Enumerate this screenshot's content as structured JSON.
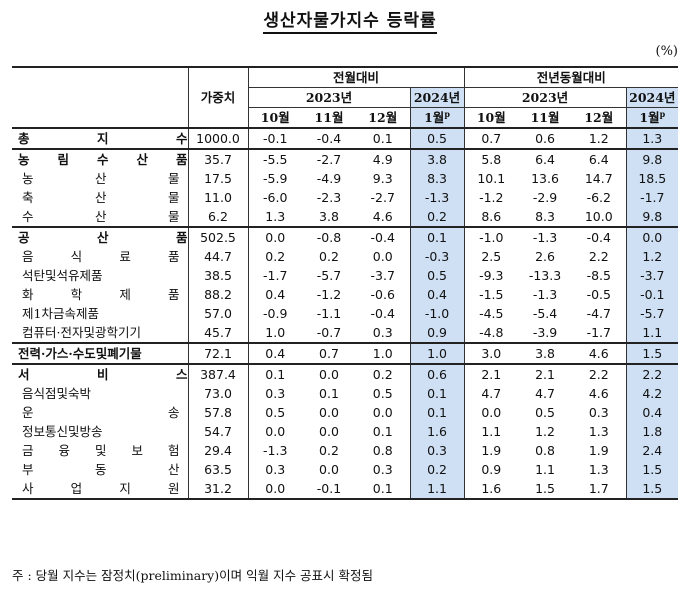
{
  "title": "생산자물가지수 등락률",
  "unit": "(%)",
  "header": {
    "weight": "가중치",
    "mom_group": "전월대비",
    "yoy_group": "전년동월대비",
    "year_2023": "2023년",
    "year_2024": "2024년",
    "months": [
      "10월",
      "11월",
      "12월",
      "1월"
    ],
    "prelim_mark": "p"
  },
  "rows": [
    {
      "label": "총 지 수",
      "bold": true,
      "weight": "1000.0",
      "mom": [
        "-0.1",
        "-0.4",
        "0.1",
        "0.5"
      ],
      "yoy": [
        "0.7",
        "0.6",
        "1.2",
        "1.3"
      ]
    },
    {
      "label": "농 림 수 산 품",
      "bold": true,
      "weight": "35.7",
      "mom": [
        "-5.5",
        "-2.7",
        "4.9",
        "3.8"
      ],
      "yoy": [
        "5.8",
        "6.4",
        "6.4",
        "9.8"
      ]
    },
    {
      "label": "농 산 물",
      "bold": false,
      "weight": "17.5",
      "mom": [
        "-5.9",
        "-4.9",
        "9.3",
        "8.3"
      ],
      "yoy": [
        "10.1",
        "13.6",
        "14.7",
        "18.5"
      ]
    },
    {
      "label": "축 산 물",
      "bold": false,
      "weight": "11.0",
      "mom": [
        "-6.0",
        "-2.3",
        "-2.7",
        "-1.3"
      ],
      "yoy": [
        "-1.2",
        "-2.9",
        "-6.2",
        "-1.7"
      ]
    },
    {
      "label": "수 산 물",
      "bold": false,
      "weight": "6.2",
      "mom": [
        "1.3",
        "3.8",
        "4.6",
        "0.2"
      ],
      "yoy": [
        "8.6",
        "8.3",
        "10.0",
        "9.8"
      ]
    },
    {
      "label": "공 산 품",
      "bold": true,
      "weight": "502.5",
      "mom": [
        "0.0",
        "-0.8",
        "-0.4",
        "0.1"
      ],
      "yoy": [
        "-1.0",
        "-1.3",
        "-0.4",
        "0.0"
      ]
    },
    {
      "label": "음 식 료 품",
      "bold": false,
      "weight": "44.7",
      "mom": [
        "0.2",
        "0.2",
        "0.0",
        "-0.3"
      ],
      "yoy": [
        "2.5",
        "2.6",
        "2.2",
        "1.2"
      ]
    },
    {
      "label": "석탄및석유제품",
      "bold": false,
      "weight": "38.5",
      "mom": [
        "-1.7",
        "-5.7",
        "-3.7",
        "0.5"
      ],
      "yoy": [
        "-9.3",
        "-13.3",
        "-8.5",
        "-3.7"
      ]
    },
    {
      "label": "화 학 제 품",
      "bold": false,
      "weight": "88.2",
      "mom": [
        "0.4",
        "-1.2",
        "-0.6",
        "0.4"
      ],
      "yoy": [
        "-1.5",
        "-1.3",
        "-0.5",
        "-0.1"
      ]
    },
    {
      "label": "제1차금속제품",
      "bold": false,
      "weight": "57.0",
      "mom": [
        "-0.9",
        "-1.1",
        "-0.4",
        "-1.0"
      ],
      "yoy": [
        "-4.5",
        "-5.4",
        "-4.7",
        "-5.7"
      ]
    },
    {
      "label": "컴퓨터·전자및광학기기",
      "bold": false,
      "weight": "45.7",
      "mom": [
        "1.0",
        "-0.7",
        "0.3",
        "0.9"
      ],
      "yoy": [
        "-4.8",
        "-3.9",
        "-1.7",
        "1.1"
      ]
    },
    {
      "label": "전력·가스·수도및폐기물",
      "bold": true,
      "weight": "72.1",
      "mom": [
        "0.4",
        "0.7",
        "1.0",
        "1.0"
      ],
      "yoy": [
        "3.0",
        "3.8",
        "4.6",
        "1.5"
      ]
    },
    {
      "label": "서 비 스",
      "bold": true,
      "weight": "387.4",
      "mom": [
        "0.1",
        "0.0",
        "0.2",
        "0.6"
      ],
      "yoy": [
        "2.1",
        "2.1",
        "2.2",
        "2.2"
      ]
    },
    {
      "label": "음식점및숙박",
      "bold": false,
      "weight": "73.0",
      "mom": [
        "0.3",
        "0.1",
        "0.5",
        "0.1"
      ],
      "yoy": [
        "4.7",
        "4.7",
        "4.6",
        "4.2"
      ]
    },
    {
      "label": "운 송",
      "bold": false,
      "weight": "57.8",
      "mom": [
        "0.5",
        "0.0",
        "0.0",
        "0.1"
      ],
      "yoy": [
        "0.0",
        "0.5",
        "0.3",
        "0.4"
      ]
    },
    {
      "label": "정보통신및방송",
      "bold": false,
      "weight": "54.7",
      "mom": [
        "0.0",
        "0.0",
        "0.1",
        "1.6"
      ],
      "yoy": [
        "1.1",
        "1.2",
        "1.3",
        "1.8"
      ]
    },
    {
      "label": "금 융 및 보 험",
      "bold": false,
      "weight": "29.4",
      "mom": [
        "-1.3",
        "0.2",
        "0.8",
        "0.3"
      ],
      "yoy": [
        "1.9",
        "0.8",
        "1.9",
        "2.4"
      ]
    },
    {
      "label": "부 동 산",
      "bold": false,
      "weight": "63.5",
      "mom": [
        "0.3",
        "0.0",
        "0.3",
        "0.2"
      ],
      "yoy": [
        "0.9",
        "1.1",
        "1.3",
        "1.5"
      ]
    },
    {
      "label": "사 업 지 원",
      "bold": false,
      "weight": "31.2",
      "mom": [
        "0.0",
        "-0.1",
        "0.1",
        "1.1"
      ],
      "yoy": [
        "1.6",
        "1.5",
        "1.7",
        "1.5"
      ]
    }
  ],
  "note": "주 : 당월 지수는 잠정치(preliminary)이며 익월 지수 공표시 확정됨",
  "colors": {
    "highlight": "#cfe0f4",
    "rule": "#222222"
  }
}
